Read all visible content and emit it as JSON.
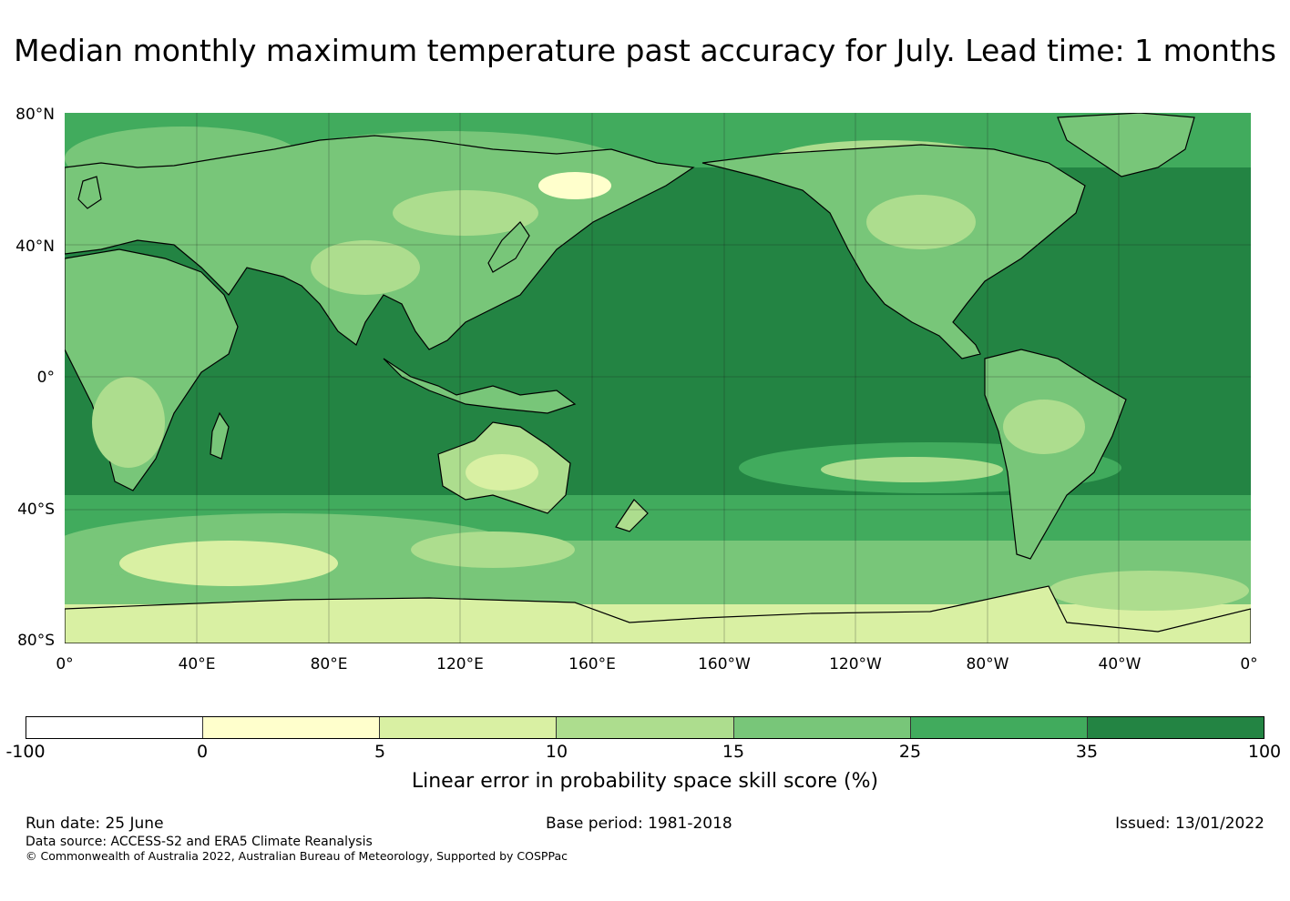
{
  "title": "Median monthly maximum temperature past accuracy for July. Lead time: 1 months",
  "map": {
    "lat_labels": [
      "80°N",
      "40°N",
      "0°",
      "40°S",
      "80°S"
    ],
    "lon_labels": [
      "0°",
      "40°E",
      "80°E",
      "120°E",
      "160°E",
      "160°W",
      "120°W",
      "80°W",
      "40°W",
      "0°"
    ],
    "ocean_color": "#238443",
    "coastline_color": "#000000"
  },
  "colorbar": {
    "ticks": [
      "-100",
      "0",
      "5",
      "10",
      "15",
      "25",
      "35",
      "100"
    ],
    "colors": [
      "#ffffff",
      "#ffffcc",
      "#d9f0a3",
      "#addd8e",
      "#78c679",
      "#41ab5d",
      "#238443"
    ],
    "label": "Linear error in probability space skill score (%)"
  },
  "footer": {
    "run_date": "Run date: 25 June",
    "base_period": "Base period: 1981-2018",
    "issued": "Issued: 13/01/2022",
    "data_source": "Data source: ACCESS-S2 and ERA5 Climate Reanalysis",
    "copyright": "© Commonwealth of Australia 2022, Australian Bureau of Meteorology, Supported by COSPPac"
  }
}
